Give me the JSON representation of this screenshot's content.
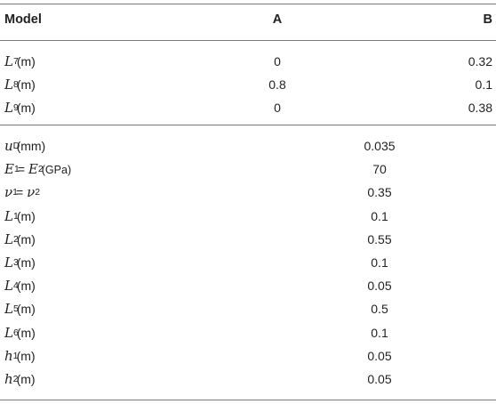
{
  "header": {
    "col0": "Model",
    "col1": "A",
    "col2": "B"
  },
  "model_rows": [
    {
      "var": "L",
      "sub": "7",
      "unit": "(m)",
      "a": "0",
      "b": "0.32"
    },
    {
      "var": "L",
      "sub": "8",
      "unit": "(m)",
      "a": "0.8",
      "b": "0.1"
    },
    {
      "var": "L",
      "sub": "9",
      "unit": "(m)",
      "a": "0",
      "b": "0.38"
    }
  ],
  "common_rows": [
    {
      "var": "u",
      "sub": "D",
      "unit": "(mm)",
      "value": "0.035"
    },
    {
      "var": "E",
      "sub": "1",
      "eq": " = ",
      "var2": "E",
      "sub2": "2",
      "unit": "(GPa)",
      "value": "70"
    },
    {
      "var": "ν",
      "sub": "1",
      "eq": " = ",
      "var2": "ν",
      "sub2": "2",
      "value": "0.35"
    },
    {
      "var": "L",
      "sub": "1",
      "unit": "(m)",
      "value": "0.1"
    },
    {
      "var": "L",
      "sub": "2",
      "unit": "(m)",
      "value": "0.55"
    },
    {
      "var": "L",
      "sub": "3",
      "unit": "(m)",
      "value": "0.1"
    },
    {
      "var": "L",
      "sub": "4",
      "unit": "(m)",
      "value": "0.05"
    },
    {
      "var": "L",
      "sub": "5",
      "unit": "(m)",
      "value": "0.5"
    },
    {
      "var": "L",
      "sub": "6",
      "unit": "(m)",
      "value": "0.1"
    },
    {
      "var": "h",
      "sub": "1",
      "unit": "(m)",
      "value": "0.05"
    },
    {
      "var": "h",
      "sub": "2",
      "unit": "(m)",
      "value": "0.05"
    }
  ]
}
